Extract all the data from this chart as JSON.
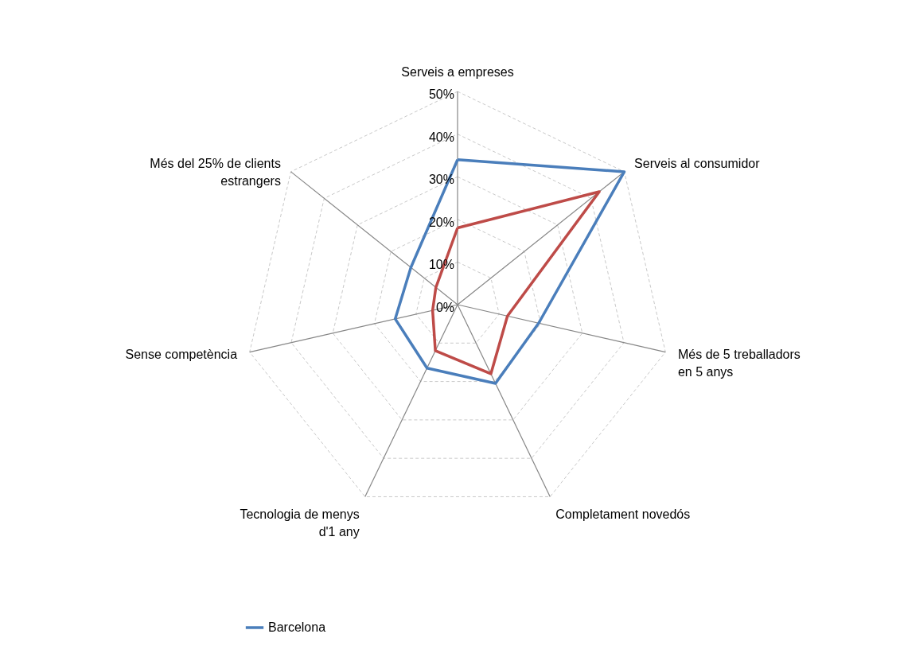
{
  "chart_data": {
    "type": "radar",
    "categories": [
      "Serveis a empreses",
      "Serveis al consumidor",
      "Més de 5 treballadors en 5 anys",
      "Completament novedós",
      "Tecnologia de menys d'1 any",
      "Sense competència",
      "Més del 25% de clients estrangers"
    ],
    "series": [
      {
        "name": "Barcelona",
        "color": "#4a7ebb",
        "values": [
          34,
          50,
          19.5,
          20.5,
          16.5,
          15,
          14
        ]
      },
      {
        "color": "#be4b48",
        "values": [
          18,
          42.5,
          12,
          18,
          12,
          6,
          6.5
        ]
      }
    ],
    "ylim": [
      0,
      50
    ],
    "yticks": [
      {
        "value": 0,
        "label": "0%"
      },
      {
        "value": 10,
        "label": "10%"
      },
      {
        "value": 20,
        "label": "20%"
      },
      {
        "value": 30,
        "label": "30%"
      },
      {
        "value": 40,
        "label": "40%"
      },
      {
        "value": 50,
        "label": "50%"
      }
    ],
    "grid": true,
    "legend": "bottom"
  }
}
